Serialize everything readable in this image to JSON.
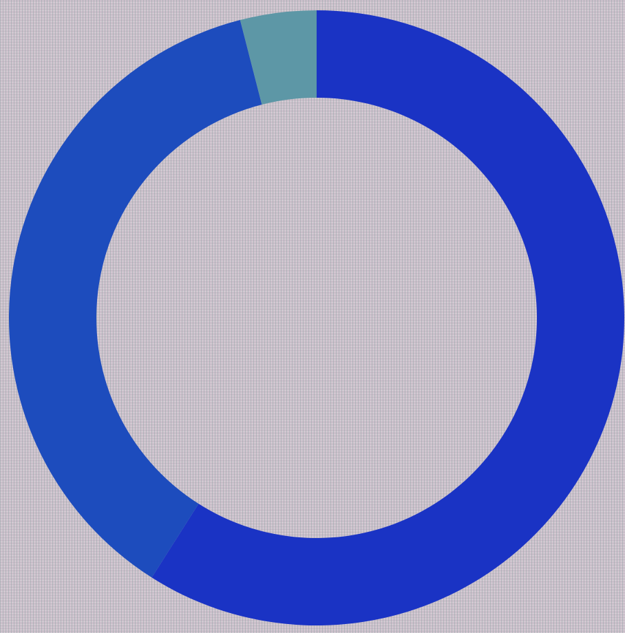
{
  "chart_data": {
    "type": "donut",
    "values": [
      59,
      37,
      4
    ],
    "colors": [
      "#1a33c4",
      "#1d4cbd",
      "#5d97a6"
    ],
    "start_angle": 0,
    "direction": "clockwise"
  }
}
